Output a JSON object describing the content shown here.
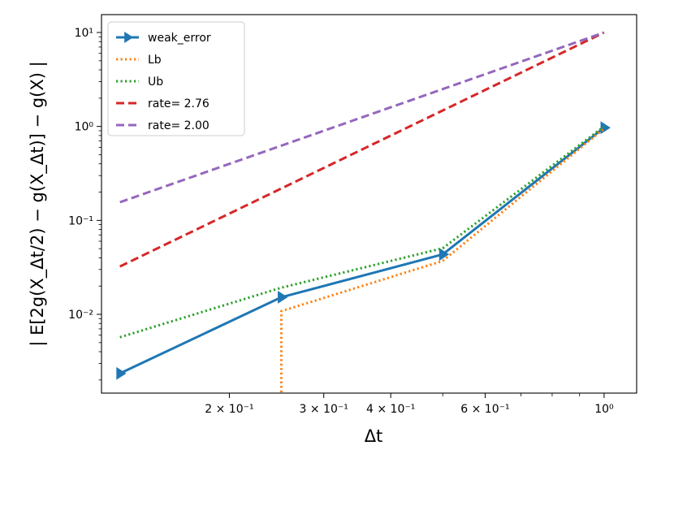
{
  "chart_data": {
    "type": "line",
    "title": "",
    "xscale": "log",
    "yscale": "log",
    "xlim": [
      0.1155,
      1.15
    ],
    "ylim": [
      0.00145,
      15.5
    ],
    "xlabel": "Δt",
    "ylabel": "| E[2g(X_Δt/2) − g(X_Δt)] − g(X) |",
    "xtick_labels": [
      "2 × 10⁻¹",
      "3 × 10⁻¹",
      "4 × 10⁻¹",
      "6 × 10⁻¹",
      "10⁰"
    ],
    "xtick_values": [
      0.2,
      0.3,
      0.4,
      0.6,
      1.0
    ],
    "ytick_labels": [
      "10⁻²",
      "10⁻¹",
      "10⁰",
      "10¹"
    ],
    "ytick_values": [
      0.01,
      0.1,
      1,
      10
    ],
    "legend_position": "top-left",
    "series": [
      {
        "name": "weak_error",
        "style": "solid-marker",
        "color": "#1f77b4",
        "x": [
          0.125,
          0.25,
          0.5,
          1.0
        ],
        "y": [
          0.00235,
          0.0152,
          0.0435,
          0.97
        ]
      },
      {
        "name": "Lb",
        "style": "dotted",
        "color": "#ff7f0e",
        "x": [
          0.25,
          0.25,
          0.5,
          1.0
        ],
        "y": [
          0.00148,
          0.0108,
          0.037,
          0.95
        ]
      },
      {
        "name": "Ub",
        "style": "dotted",
        "color": "#2ca02c",
        "x": [
          0.125,
          0.25,
          0.5,
          1.0
        ],
        "y": [
          0.0057,
          0.0192,
          0.0505,
          1.0
        ]
      },
      {
        "name": "rate= 2.76",
        "style": "dashed",
        "color": "#d62728",
        "x": [
          0.125,
          1.0
        ],
        "y": [
          0.0323,
          10.0
        ]
      },
      {
        "name": "rate= 2.00",
        "style": "dashed",
        "color": "#9467bd",
        "x": [
          0.125,
          1.0
        ],
        "y": [
          0.156,
          10.0
        ]
      }
    ]
  }
}
